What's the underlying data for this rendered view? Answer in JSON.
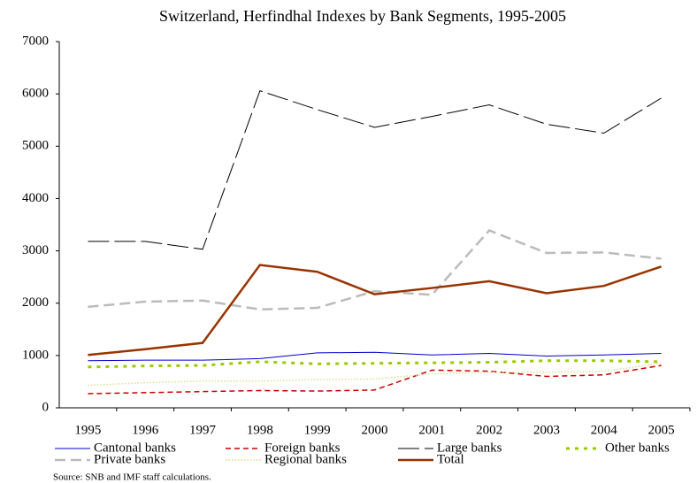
{
  "chart_data": {
    "type": "line",
    "title": "Switzerland, Herfindhal Indexes by Bank Segments, 1995-2005",
    "categories": [
      "1995",
      "1996",
      "1997",
      "1998",
      "1999",
      "2000",
      "2001",
      "2002",
      "2003",
      "2004",
      "2005"
    ],
    "ylim": [
      0,
      7000
    ],
    "yticks": [
      0,
      1000,
      2000,
      3000,
      4000,
      5000,
      6000,
      7000
    ],
    "grid": false,
    "legend": "bottom",
    "series": [
      {
        "name": "Cantonal banks",
        "color": "#0000cc",
        "line_style": "solid",
        "values": [
          900,
          910,
          910,
          940,
          1050,
          1060,
          1010,
          1040,
          990,
          1010,
          1040
        ]
      },
      {
        "name": "Foreign banks",
        "color": "#cc0000",
        "line_style": "dashed",
        "values": [
          270,
          290,
          310,
          330,
          320,
          340,
          720,
          700,
          600,
          630,
          810
        ]
      },
      {
        "name": "Large banks",
        "color": "#000000",
        "line_style": "long-dash",
        "values": [
          3180,
          3180,
          3030,
          6060,
          5700,
          5360,
          5570,
          5790,
          5420,
          5250,
          5920
        ]
      },
      {
        "name": "Other banks",
        "color": "#99cc00",
        "line_style": "thick-dotted",
        "values": [
          780,
          800,
          810,
          880,
          840,
          850,
          860,
          870,
          900,
          900,
          880
        ]
      },
      {
        "name": "Private banks",
        "color": "#bbbbbb",
        "line_style": "thick-dashed",
        "values": [
          1930,
          2030,
          2050,
          1880,
          1910,
          2230,
          2160,
          3390,
          2960,
          2970,
          2850
        ]
      },
      {
        "name": "Regional banks",
        "color": "#dede90",
        "line_style": "dotted",
        "values": [
          430,
          480,
          510,
          510,
          540,
          550,
          650,
          680,
          680,
          700,
          850
        ]
      },
      {
        "name": "Total",
        "color": "#993300",
        "line_style": "thick",
        "values": [
          1010,
          1120,
          1240,
          2730,
          2600,
          2170,
          2290,
          2420,
          2190,
          2330,
          2700
        ]
      }
    ],
    "source": "Source: SNB and IMF staff calculations."
  }
}
